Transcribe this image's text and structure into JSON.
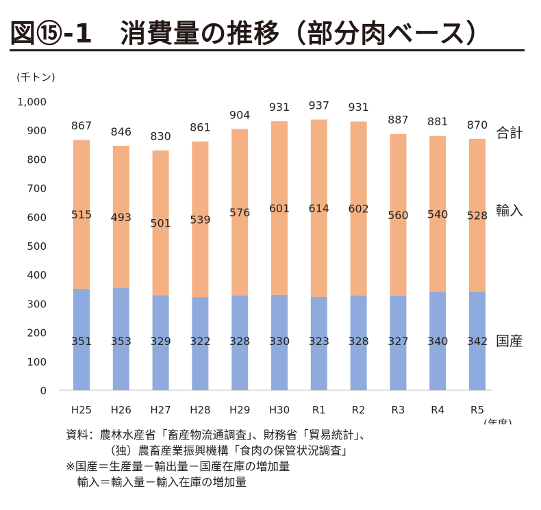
{
  "title": "図⑮-1　消費量の推移（部分肉ベース）",
  "chart_data": {
    "type": "bar",
    "stacked": true,
    "unit_label": "(千トン)",
    "xlabel": "(年度)",
    "categories": [
      "H25",
      "H26",
      "H27",
      "H28",
      "H29",
      "H30",
      "R1",
      "R2",
      "R3",
      "R4",
      "R5"
    ],
    "series": [
      {
        "name": "国産",
        "color": "#8faadc",
        "values": [
          351,
          353,
          329,
          322,
          328,
          330,
          323,
          328,
          327,
          340,
          342
        ]
      },
      {
        "name": "輸入",
        "color": "#f4b183",
        "values": [
          515,
          493,
          501,
          539,
          576,
          601,
          614,
          602,
          560,
          540,
          528
        ]
      }
    ],
    "totals": {
      "name": "合計",
      "values": [
        867,
        846,
        830,
        861,
        904,
        931,
        937,
        931,
        887,
        881,
        870
      ]
    },
    "ylim": [
      0,
      1000
    ],
    "yticks": [
      "0",
      "100",
      "200",
      "300",
      "400",
      "500",
      "600",
      "700",
      "800",
      "900",
      "1,000"
    ],
    "grid": false,
    "legend": "right"
  },
  "notes": [
    "資料：農林水産省「畜産物流通調査」、財務省「貿易統計」、",
    "（独）農畜産業振興機構「食肉の保管状況調査」",
    "※国産＝生産量－輸出量－国産在庫の増加量",
    "　輸入＝輸入量－輸入在庫の増加量"
  ]
}
